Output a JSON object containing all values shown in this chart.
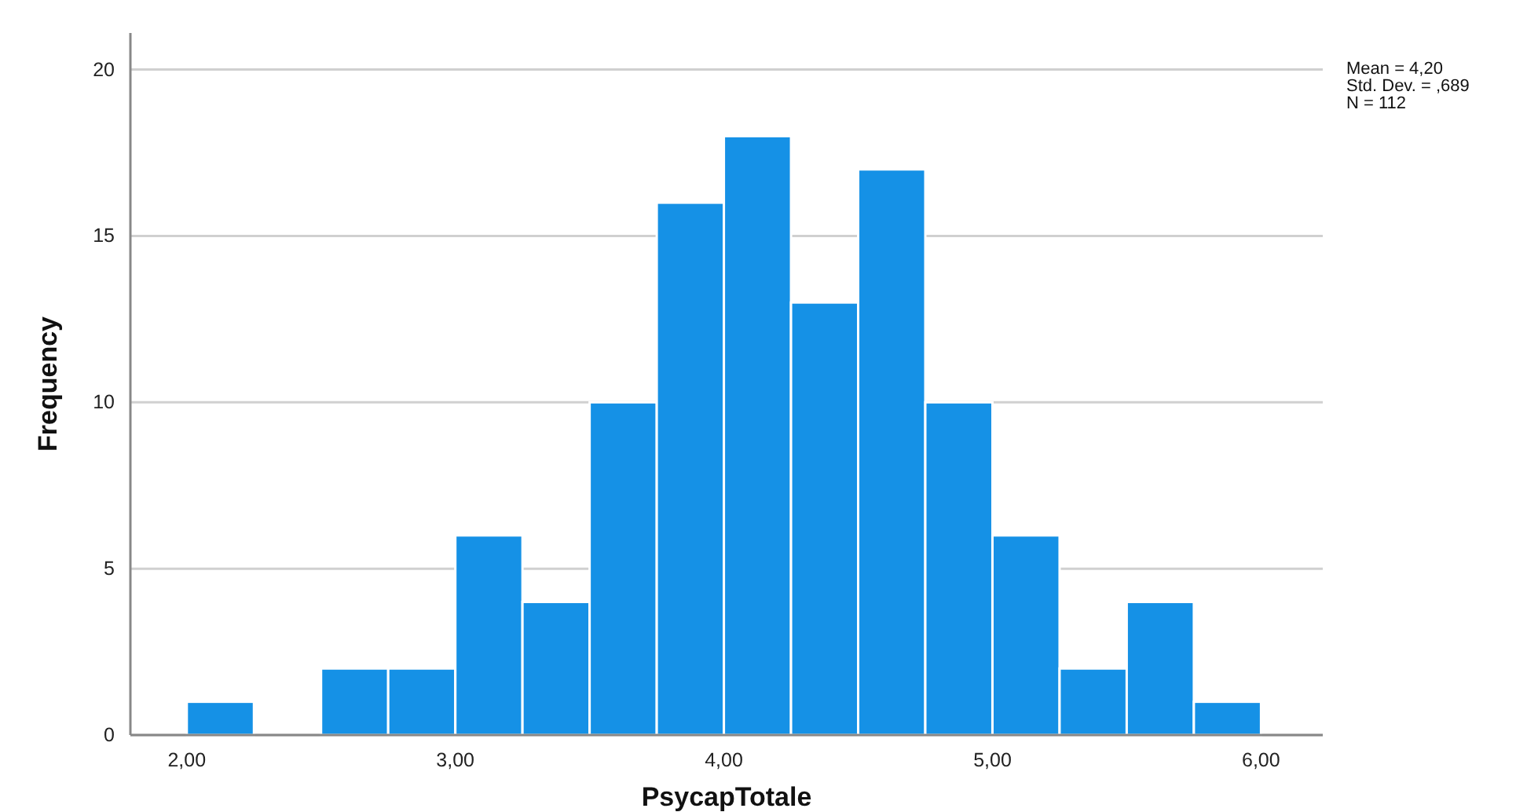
{
  "chart_data": {
    "type": "histogram",
    "xlabel": "PsycapTotale",
    "ylabel": "Frequency",
    "bins": [
      2,
      2.25,
      2.5,
      2.75,
      3,
      3.25,
      3.5,
      3.75,
      4,
      4.25,
      4.5,
      4.75,
      5,
      5.25,
      5.5,
      5.75,
      6
    ],
    "values": [
      1,
      0,
      2,
      2,
      6,
      4,
      10,
      16,
      18,
      13,
      17,
      10,
      6,
      2,
      4,
      1
    ],
    "color": "#1591e6",
    "xlim": [
      1.79,
      6.23
    ],
    "ylim": [
      0,
      21.1
    ],
    "xticks": [
      {
        "value": 2,
        "label": "2,00"
      },
      {
        "value": 3,
        "label": "3,00"
      },
      {
        "value": 4,
        "label": "4,00"
      },
      {
        "value": 5,
        "label": "5,00"
      },
      {
        "value": 6,
        "label": "6,00"
      }
    ],
    "yticks": [
      0,
      5,
      10,
      15,
      20
    ],
    "grid": "y",
    "annotations": [
      "Mean = 4,20",
      "Std. Dev. = ,689",
      "N = 112"
    ]
  }
}
